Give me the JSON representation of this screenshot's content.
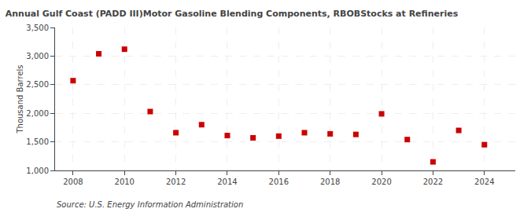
{
  "chart_data": {
    "type": "scatter",
    "title": "Annual Gulf Coast (PADD III)Motor Gasoline Blending Components, RBOBStocks at Refineries",
    "ylabel": "Thousand Barrels",
    "annotations": [
      "Source: U.S. Energy Information Administration"
    ],
    "x": [
      2008,
      2009,
      2010,
      2011,
      2012,
      2013,
      2014,
      2015,
      2016,
      2017,
      2018,
      2019,
      2020,
      2021,
      2022,
      2023,
      2024
    ],
    "values": [
      2570,
      3040,
      3120,
      2030,
      1660,
      1800,
      1610,
      1570,
      1600,
      1660,
      1640,
      1630,
      1990,
      1540,
      1150,
      1700,
      1450
    ],
    "color": "#cc0000",
    "marker": "square",
    "xlim": [
      2007.3,
      2025.2
    ],
    "xticks": [
      2008,
      2010,
      2012,
      2014,
      2016,
      2018,
      2020,
      2022,
      2024
    ],
    "ylim": [
      1000,
      3500
    ],
    "yticks": [
      {
        "value": 1000,
        "label": "1,000"
      },
      {
        "value": 1500,
        "label": "1,500"
      },
      {
        "value": 2000,
        "label": "2,000"
      },
      {
        "value": 2500,
        "label": "2,500"
      },
      {
        "value": 3000,
        "label": "3,000"
      },
      {
        "value": 3500,
        "label": "3,500"
      }
    ],
    "grid": true
  }
}
